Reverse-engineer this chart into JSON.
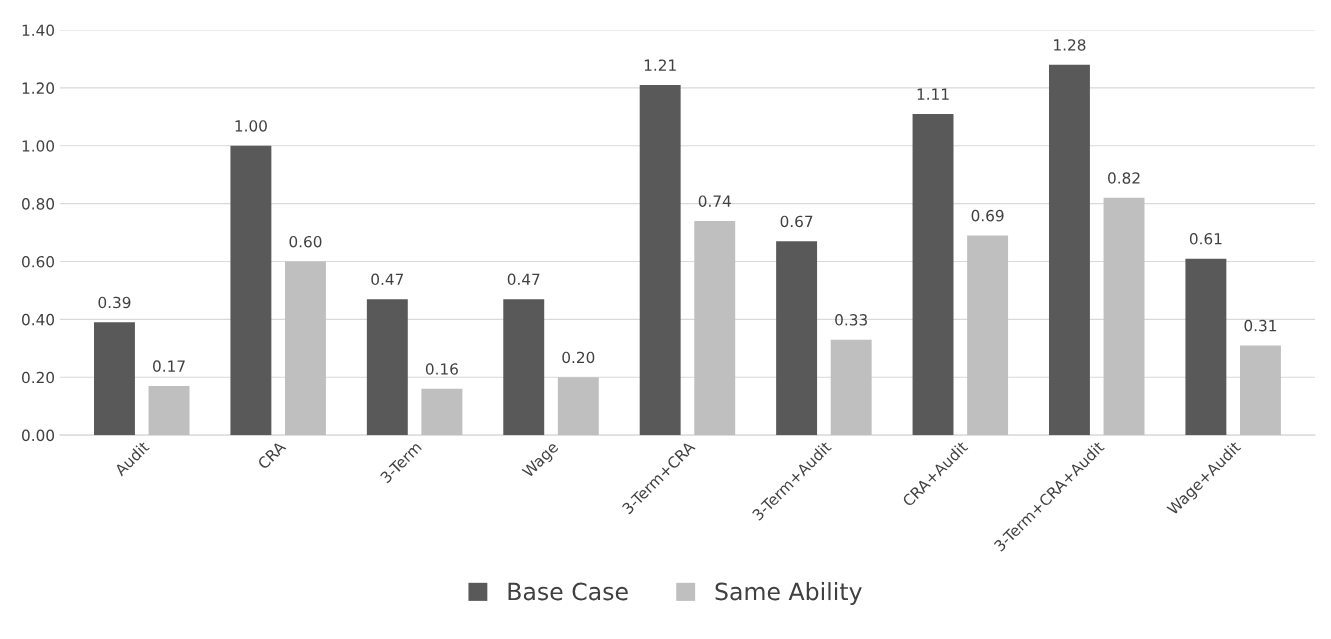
{
  "chart_data": {
    "type": "bar",
    "categories": [
      "Audit",
      "CRA",
      "3-Term",
      "Wage",
      "3-Term+CRA",
      "3-Term+Audit",
      "CRA+Audit",
      "3-Term+CRA+Audit",
      "Wage+Audit"
    ],
    "series": [
      {
        "name": "Base Case",
        "color": "#595959",
        "values": [
          0.39,
          1.0,
          0.47,
          0.47,
          1.21,
          0.67,
          1.11,
          1.28,
          0.61
        ],
        "value_labels": [
          "0.39",
          "1.00",
          "0.47",
          "0.47",
          "1.21",
          "0.67",
          "1.11",
          "1.28",
          "0.61"
        ]
      },
      {
        "name": "Same Ability",
        "color": "#bfbfbf",
        "values": [
          0.17,
          0.6,
          0.16,
          0.2,
          0.74,
          0.33,
          0.69,
          0.82,
          0.31
        ],
        "value_labels": [
          "0.17",
          "0.60",
          "0.16",
          "0.20",
          "0.74",
          "0.33",
          "0.69",
          "0.82",
          "0.31"
        ]
      }
    ],
    "ylim": [
      0,
      1.4
    ],
    "yticks": [
      {
        "value": 0,
        "label": "0.00"
      },
      {
        "value": 0.2,
        "label": "0.20"
      },
      {
        "value": 0.4,
        "label": "0.40"
      },
      {
        "value": 0.6,
        "label": "0.60"
      },
      {
        "value": 0.8,
        "label": "0.80"
      },
      {
        "value": 1.0,
        "label": "1.00"
      },
      {
        "value": 1.2,
        "label": "1.20"
      },
      {
        "value": 1.4,
        "label": "1.40"
      }
    ],
    "grid": "y",
    "legend": "bottom"
  }
}
